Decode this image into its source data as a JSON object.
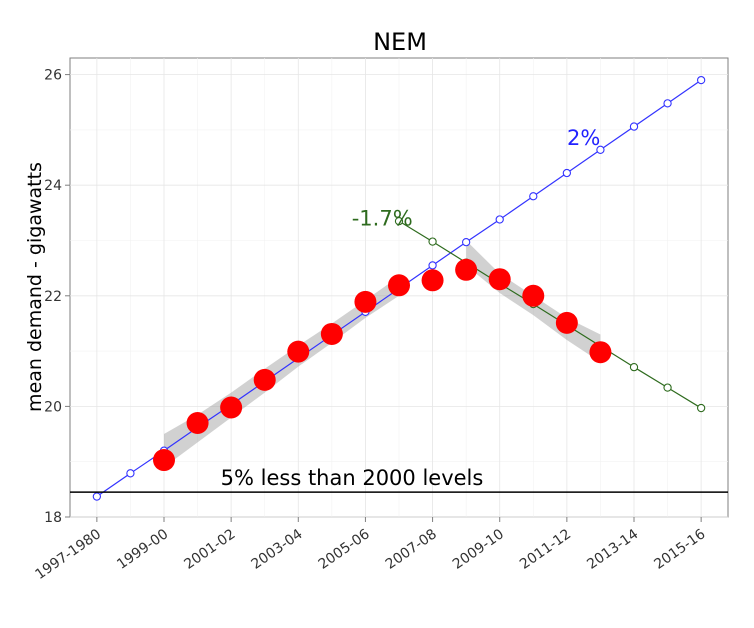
{
  "chart_data": {
    "type": "line",
    "title": "NEM",
    "ylabel": "mean demand - gigawatts",
    "xlabel": "",
    "ylim": [
      18,
      26.3
    ],
    "yticks": [
      18,
      20,
      22,
      24,
      26
    ],
    "xtick_labels": [
      "1997-1980",
      "1999-00",
      "2001-02",
      "2003-04",
      "2005-06",
      "2007-08",
      "2009-10",
      "2011-12",
      "2013-14",
      "2015-16"
    ],
    "grid": true,
    "series": [
      {
        "color": "#3333ff",
        "marker": "open-circle",
        "x": [
          0,
          1,
          2,
          3,
          4,
          5,
          6,
          7,
          8,
          9,
          10,
          11,
          12,
          13,
          14,
          15,
          16,
          17,
          18
        ],
        "values": [
          18.37,
          18.79,
          19.2,
          19.62,
          20.03,
          20.45,
          20.87,
          21.29,
          21.71,
          22.13,
          22.55,
          22.97,
          23.38,
          23.8,
          24.22,
          24.64,
          25.06,
          25.48,
          25.9
        ]
      },
      {
        "color": "#2e6b1e",
        "marker": "open-circle",
        "x": [
          9,
          10,
          11,
          12,
          13,
          14,
          15,
          16,
          17,
          18
        ],
        "values": [
          23.35,
          22.98,
          22.6,
          22.22,
          21.85,
          21.47,
          21.09,
          20.71,
          20.34,
          19.97
        ]
      },
      {
        "color": "#ff0000",
        "marker": "filled-circle",
        "x": [
          2,
          3,
          4,
          5,
          6,
          7,
          8,
          9,
          10,
          11,
          12,
          13,
          14,
          15
        ],
        "values": [
          19.03,
          19.7,
          19.98,
          20.48,
          20.99,
          21.31,
          21.89,
          22.19,
          22.28,
          22.47,
          22.3,
          22.0,
          21.51,
          20.98
        ]
      }
    ],
    "smooth_bands": [
      {
        "color": "#999999",
        "x": [
          2,
          3,
          4,
          5,
          6,
          7,
          8,
          9
        ],
        "lower": [
          18.9,
          19.35,
          19.8,
          20.25,
          20.72,
          21.15,
          21.6,
          22.0
        ],
        "upper": [
          19.5,
          19.85,
          20.25,
          20.68,
          21.1,
          21.5,
          21.92,
          22.35
        ]
      },
      {
        "color": "#999999",
        "x": [
          11,
          12,
          13,
          14,
          15
        ],
        "lower": [
          22.55,
          22.05,
          21.65,
          21.2,
          20.8
        ],
        "upper": [
          23.0,
          22.4,
          22.0,
          21.6,
          21.3
        ]
      }
    ],
    "hline": {
      "y": 18.45,
      "label": "5% less than 2000 levels"
    },
    "annotations": [
      {
        "text": "2%",
        "x": 14.5,
        "y": 24.85,
        "color": "#2222ff"
      },
      {
        "text": "-1.7%",
        "x": 8.5,
        "y": 23.4,
        "color": "#2e6b1e"
      }
    ]
  }
}
